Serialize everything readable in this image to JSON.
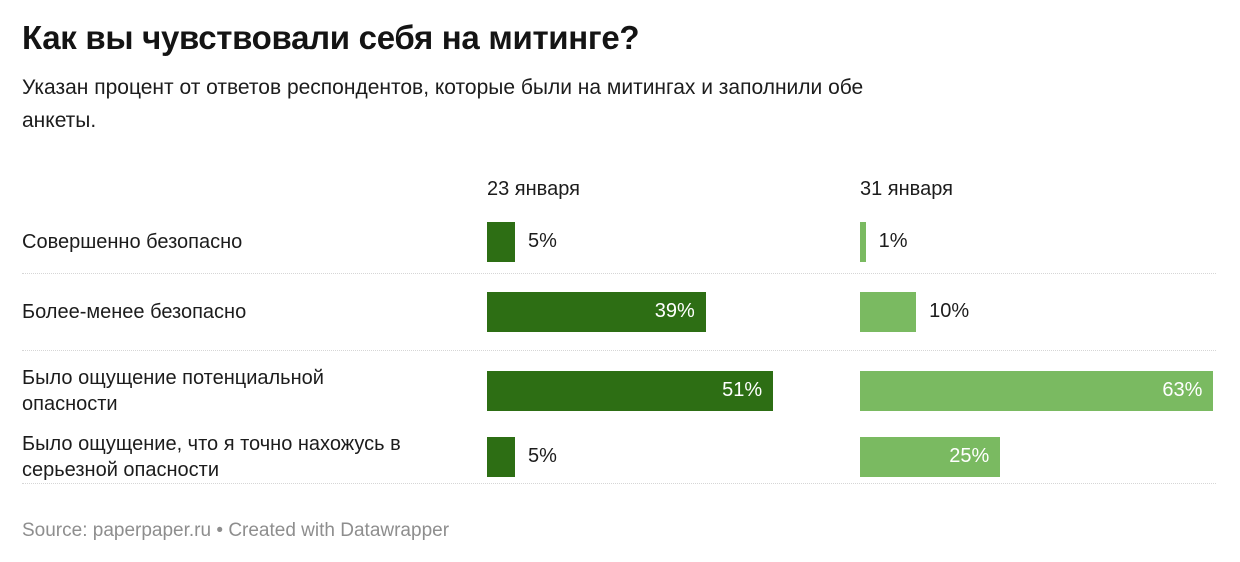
{
  "title": "Как вы чувствовали себя на митинге?",
  "subtitle": "Указан процент от ответов респондентов, которые были на митингах и заполнили обе\nанкеты.",
  "colors": {
    "bar_dark": "#2d6e14",
    "bar_light": "#7aba61",
    "separator": "#d6d6d6",
    "footer_text": "#8e8e8e"
  },
  "chart_data": {
    "type": "bar",
    "orientation": "horizontal",
    "unit": "%",
    "xlim": [
      0,
      63
    ],
    "grid": false,
    "column_headers": [
      "23 января",
      "31 января"
    ],
    "categories": [
      "Совершенно безопасно",
      "Более-менее безопасно",
      "Было ощущение потенциальной опасности",
      "Было ощущение, что я точно нахожусь в серьезной опасности"
    ],
    "series": [
      {
        "name": "23 января",
        "color": "#2d6e14",
        "values": [
          5,
          39,
          51,
          5
        ]
      },
      {
        "name": "31 января",
        "color": "#7aba61",
        "values": [
          1,
          10,
          63,
          25
        ]
      }
    ],
    "rows": [
      {
        "label": "Совершенно безопасно",
        "values": [
          5,
          1
        ],
        "display": [
          "5%",
          "1%"
        ]
      },
      {
        "label": "Более-менее безопасно",
        "values": [
          39,
          10
        ],
        "display": [
          "39%",
          "10%"
        ]
      },
      {
        "label": "Было ощущение потенциальной\nопасности",
        "values": [
          51,
          63
        ],
        "display": [
          "51%",
          "63%"
        ]
      },
      {
        "label": "Было ощущение, что я точно нахожусь в\nсерьезной опасности",
        "values": [
          5,
          25
        ],
        "display": [
          "5%",
          "25%"
        ]
      }
    ]
  },
  "footer": {
    "text": "Source: paperpaper.ru • Created with Datawrapper",
    "source_prefix": "Source: ",
    "source_name": "paperpaper.ru",
    "bullet": " • ",
    "credit": "Created with Datawrapper"
  }
}
